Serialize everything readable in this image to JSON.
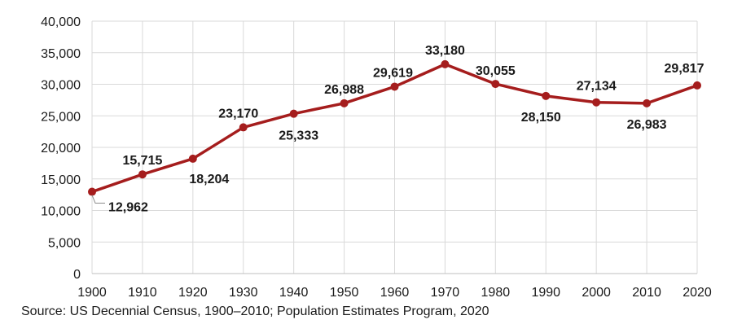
{
  "chart_data": {
    "type": "line",
    "x": [
      1900,
      1910,
      1920,
      1930,
      1940,
      1950,
      1960,
      1970,
      1980,
      1990,
      2000,
      2010,
      2020
    ],
    "series": [
      {
        "values": [
          12962,
          15715,
          18204,
          23170,
          25333,
          26988,
          29619,
          33180,
          30055,
          28150,
          27134,
          26983,
          29817
        ],
        "color": "#a51d1d"
      }
    ],
    "data_labels": [
      "12,962",
      "15,715",
      "18,204",
      "23,170",
      "25,333",
      "26,988",
      "29,619",
      "33,180",
      "30,055",
      "28,150",
      "27,134",
      "26,983",
      "29,817"
    ],
    "ylim": [
      0,
      40000
    ],
    "y_ticks": [
      0,
      5000,
      10000,
      15000,
      20000,
      25000,
      30000,
      35000,
      40000
    ],
    "y_tick_labels": [
      "0",
      "5,000",
      "10,000",
      "15,000",
      "20,000",
      "25,000",
      "30,000",
      "35,000",
      "40,000"
    ],
    "x_tick_labels": [
      "1900",
      "1910",
      "1920",
      "1930",
      "1940",
      "1950",
      "1960",
      "1970",
      "1980",
      "1990",
      "2000",
      "2010",
      "2020"
    ],
    "grid": true,
    "title": "",
    "xlabel": "",
    "ylabel": ""
  },
  "source_note": "Source: US Decennial Census, 1900–2010; Population Estimates Program, 2020"
}
